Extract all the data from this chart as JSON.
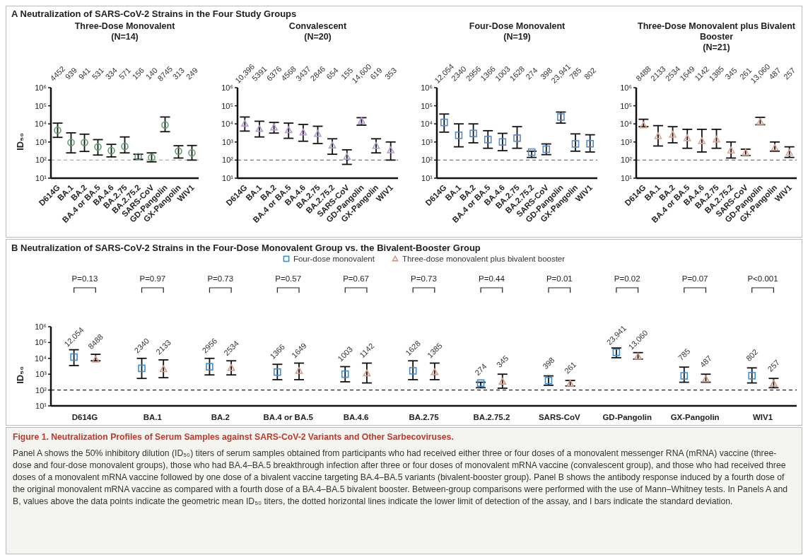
{
  "chart_data": [
    {
      "type": "scatter",
      "title": "Three-Dose Monovalent",
      "subtitle": "(N=14)",
      "ylabel": "ID₅₀",
      "categories": [
        "D614G",
        "BA.1",
        "BA.2",
        "BA.4 or BA.5",
        "BA.4.6",
        "BA.2.75",
        "BA.2.75.2",
        "SARS-CoV",
        "GD-Pangolin",
        "GX-Pangolin",
        "WIV1"
      ],
      "ylim": [
        10,
        1000000
      ],
      "yticks": [
        {
          "value": 10,
          "label": "10¹"
        },
        {
          "value": 100,
          "label": "10²"
        },
        {
          "value": 1000,
          "label": "10³"
        },
        {
          "value": 10000,
          "label": "10⁴"
        },
        {
          "value": 100000,
          "label": "10⁵"
        },
        {
          "value": 1000000,
          "label": "10⁶"
        }
      ],
      "log": true,
      "marker": "circle",
      "series": [
        {
          "color": "#5a9e6f",
          "values": [
            4452,
            939,
            941,
            531,
            334,
            571,
            156,
            140,
            8745,
            313,
            249
          ],
          "errors": [
            [
              1800,
              11000
            ],
            [
              250,
              3200
            ],
            [
              300,
              2700
            ],
            [
              190,
              1350
            ],
            [
              150,
              740
            ],
            [
              250,
              1900
            ],
            [
              110,
              210
            ],
            [
              80,
              250
            ],
            [
              3700,
              24000
            ],
            [
              130,
              620
            ],
            [
              100,
              640
            ]
          ],
          "value_labels": [
            "4452",
            "939",
            "941",
            "531",
            "334",
            "571",
            "156",
            "140",
            "8745",
            "313",
            "249"
          ]
        }
      ],
      "ref_lines": [
        {
          "axis": "y",
          "value": 100,
          "color": "#aaaaaa",
          "line_style": "dashed"
        }
      ],
      "annotations": [
        "A  Neutralization of SARS-CoV-2 Strains in the Four Study Groups",
        "Figure 1. Neutralization Profiles of Serum Samples against SARS-CoV-2 Variants and Other Sarbecoviruses.",
        "Panel A shows the 50% inhibitory dilution (ID₅₀) titers of serum samples obtained from participants who had received either three or four doses of a monovalent messenger RNA (mRNA) vaccine (three-dose and four-dose monovalent groups), those who had BA.4–BA.5 breakthrough infection after three or four doses of monovalent mRNA vaccine (convalescent group), and those who had received three doses of a monovalent mRNA vaccine followed by one dose of a bivalent vaccine targeting BA.4–BA.5 variants (bivalent-booster group). Panel B shows the antibody response induced by a fourth dose of the original monovalent mRNA vaccine as compared with a fourth dose of a BA.4–BA.5 bivalent booster. Between-group comparisons were performed with the use of Mann–Whitney tests. In Panels A and B, values above the data points indicate the geometric mean ID₅₀ titers, the dotted horizontal lines indicate the lower limit of detection of the assay, and I bars indicate the standard deviation."
      ]
    },
    {
      "type": "scatter",
      "title": "Convalescent",
      "subtitle": "(N=20)",
      "categories": [
        "D614G",
        "BA.1",
        "BA.2",
        "BA.4 or BA.5",
        "BA.4.6",
        "BA.2.75",
        "BA.2.75.2",
        "SARS-CoV",
        "GD-Pangolin",
        "GX-Pangolin",
        "WIV1"
      ],
      "ylim": [
        10,
        1000000
      ],
      "yticks": [
        {
          "value": 10,
          "label": "10¹"
        },
        {
          "value": 100,
          "label": "10²"
        },
        {
          "value": 1000,
          "label": "10³"
        },
        {
          "value": 10000,
          "label": "10⁴"
        },
        {
          "value": 100000,
          "label": "10⁵"
        },
        {
          "value": 1000000,
          "label": "10⁶"
        }
      ],
      "log": true,
      "marker": "triangle",
      "series": [
        {
          "color": "#b49ad0",
          "values": [
            10396,
            5391,
            6376,
            4568,
            3437,
            2846,
            654,
            155,
            14600,
            619,
            353
          ],
          "errors": [
            [
              4000,
              24000
            ],
            [
              1900,
              14000
            ],
            [
              3100,
              12000
            ],
            [
              1600,
              11000
            ],
            [
              1100,
              9300
            ],
            [
              820,
              7400
            ],
            [
              210,
              1500
            ],
            [
              58,
              370
            ],
            [
              8500,
              22000
            ],
            [
              250,
              1500
            ],
            [
              100,
              1000
            ]
          ],
          "value_labels": [
            "10,396",
            "5391",
            "6376",
            "4568",
            "3437",
            "2846",
            "654",
            "155",
            "14,600",
            "619",
            "353"
          ]
        }
      ],
      "ref_lines": [
        {
          "axis": "y",
          "value": 100,
          "color": "#777777",
          "line_style": "dashed"
        }
      ]
    },
    {
      "type": "scatter",
      "title": "Four-Dose Monovalent",
      "subtitle": "(N=19)",
      "categories": [
        "D614G",
        "BA.1",
        "BA.2",
        "BA.4 or BA.5",
        "BA.4.6",
        "BA.2.75",
        "BA.2.75.2",
        "SARS-CoV",
        "GD-Pangolin",
        "GX-Pangolin",
        "WIV1"
      ],
      "ylim": [
        10,
        1000000
      ],
      "yticks": [
        {
          "value": 10,
          "label": "10¹"
        },
        {
          "value": 100,
          "label": "10²"
        },
        {
          "value": 1000,
          "label": "10³"
        },
        {
          "value": 10000,
          "label": "10⁴"
        },
        {
          "value": 100000,
          "label": "10⁵"
        },
        {
          "value": 1000000,
          "label": "10⁶"
        }
      ],
      "log": true,
      "marker": "square",
      "series": [
        {
          "color": "#5b88c8",
          "values": [
            12054,
            2340,
            2956,
            1366,
            1003,
            1628,
            274,
            398,
            23941,
            785,
            802
          ],
          "errors": [
            [
              3500,
              35000
            ],
            [
              540,
              10000
            ],
            [
              900,
              10000
            ],
            [
              450,
              4200
            ],
            [
              330,
              3000
            ],
            [
              450,
              7000
            ],
            [
              140,
              310
            ],
            [
              200,
              780
            ],
            [
              11000,
              45000
            ],
            [
              310,
              2800
            ],
            [
              280,
              2500
            ]
          ],
          "value_labels": [
            "12,054",
            "2340",
            "2956",
            "1366",
            "1003",
            "1628",
            "274",
            "398",
            "23,941",
            "785",
            "802"
          ]
        }
      ],
      "ref_lines": [
        {
          "axis": "y",
          "value": 100,
          "color": "#777777",
          "line_style": "dashed"
        }
      ]
    },
    {
      "type": "scatter",
      "title": "Three-Dose Monovalent plus Bivalent Booster",
      "subtitle": "(N=21)",
      "categories": [
        "D614G",
        "BA.1",
        "BA.2",
        "BA.4 or BA.5",
        "BA.4.6",
        "BA.2.75",
        "BA.2.75.2",
        "SARS-CoV",
        "GD-Pangolin",
        "GX-Pangolin",
        "WIV1"
      ],
      "ylim": [
        10,
        1000000
      ],
      "yticks": [
        {
          "value": 10,
          "label": "10¹"
        },
        {
          "value": 100,
          "label": "10²"
        },
        {
          "value": 1000,
          "label": "10³"
        },
        {
          "value": 10000,
          "label": "10⁴"
        },
        {
          "value": 100000,
          "label": "10⁵"
        },
        {
          "value": 1000000,
          "label": "10⁶"
        }
      ],
      "log": true,
      "marker": "triangle",
      "series": [
        {
          "color": "#d8a898",
          "values": [
            8488,
            2133,
            2534,
            1649,
            1142,
            1385,
            345,
            261,
            13060,
            487,
            257
          ],
          "errors": [
            [
              7000,
              18000
            ],
            [
              600,
              8000
            ],
            [
              900,
              7000
            ],
            [
              450,
              5000
            ],
            [
              280,
              5000
            ],
            [
              450,
              5000
            ],
            [
              130,
              1000
            ],
            [
              180,
              400
            ],
            [
              9000,
              23000
            ],
            [
              310,
              1000
            ],
            [
              140,
              540
            ]
          ],
          "value_labels": [
            "8488",
            "2133",
            "2534",
            "1649",
            "1142",
            "1385",
            "345",
            "261",
            "13,060",
            "487",
            "257"
          ]
        }
      ],
      "ref_lines": [
        {
          "axis": "y",
          "value": 100,
          "color": "#777777",
          "line_style": "dashed"
        }
      ]
    },
    {
      "type": "scatter",
      "title": "B  Neutralization of SARS-CoV-2 Strains in the Four-Dose Monovalent Group vs. the Bivalent-Booster Group",
      "ylabel": "ID₅₀",
      "categories": [
        "D614G",
        "BA.1",
        "BA.2",
        "BA.4 or BA.5",
        "BA.4.6",
        "BA.2.75",
        "BA.2.75.2",
        "SARS-CoV",
        "GD-Pangolin",
        "GX-Pangolin",
        "WIV1"
      ],
      "ylim": [
        10,
        1000000
      ],
      "yticks": [
        {
          "value": 10,
          "label": "10¹"
        },
        {
          "value": 100,
          "label": "10²"
        },
        {
          "value": 1000,
          "label": "10³"
        },
        {
          "value": 10000,
          "label": "10⁴"
        },
        {
          "value": 100000,
          "label": "10⁵"
        },
        {
          "value": 1000000,
          "label": "10⁶"
        }
      ],
      "log": true,
      "legend": "top",
      "series": [
        {
          "name": "Four-dose monovalent",
          "color": "#3a8fd4",
          "marker": "square",
          "values": [
            12054,
            2340,
            2956,
            1366,
            1003,
            1628,
            274,
            398,
            23941,
            785,
            802
          ],
          "errors": [
            [
              3500,
              35000
            ],
            [
              540,
              10000
            ],
            [
              900,
              10000
            ],
            [
              450,
              4200
            ],
            [
              330,
              3000
            ],
            [
              450,
              7000
            ],
            [
              140,
              310
            ],
            [
              200,
              780
            ],
            [
              11000,
              45000
            ],
            [
              310,
              2800
            ],
            [
              280,
              2500
            ]
          ],
          "value_labels": [
            "12,054",
            "2340",
            "2956",
            "1366",
            "1003",
            "1628",
            "274",
            "398",
            "23,941",
            "785",
            "802"
          ]
        },
        {
          "name": "Three-dose monovalent plus bivalent booster",
          "color": "#d49a86",
          "marker": "triangle",
          "values": [
            8488,
            2133,
            2534,
            1649,
            1142,
            1385,
            345,
            261,
            13060,
            487,
            257
          ],
          "errors": [
            [
              7000,
              18000
            ],
            [
              600,
              8000
            ],
            [
              900,
              7000
            ],
            [
              450,
              5000
            ],
            [
              280,
              5000
            ],
            [
              450,
              5000
            ],
            [
              130,
              1000
            ],
            [
              180,
              400
            ],
            [
              9000,
              23000
            ],
            [
              310,
              1000
            ],
            [
              140,
              540
            ]
          ],
          "value_labels": [
            "8488",
            "2133",
            "2534",
            "1649",
            "1142",
            "1385",
            "345",
            "261",
            "13,060",
            "487",
            "257"
          ]
        }
      ],
      "ref_lines": [
        {
          "axis": "y",
          "value": 100,
          "color": "#222222",
          "line_style": "dashed"
        }
      ],
      "annotations": [
        "P=0.13",
        "P=0.97",
        "P=0.73",
        "P=0.57",
        "P=0.67",
        "P=0.73",
        "P=0.44",
        "P=0.01",
        "P=0.02",
        "P=0.07",
        "P<0.001"
      ]
    }
  ]
}
